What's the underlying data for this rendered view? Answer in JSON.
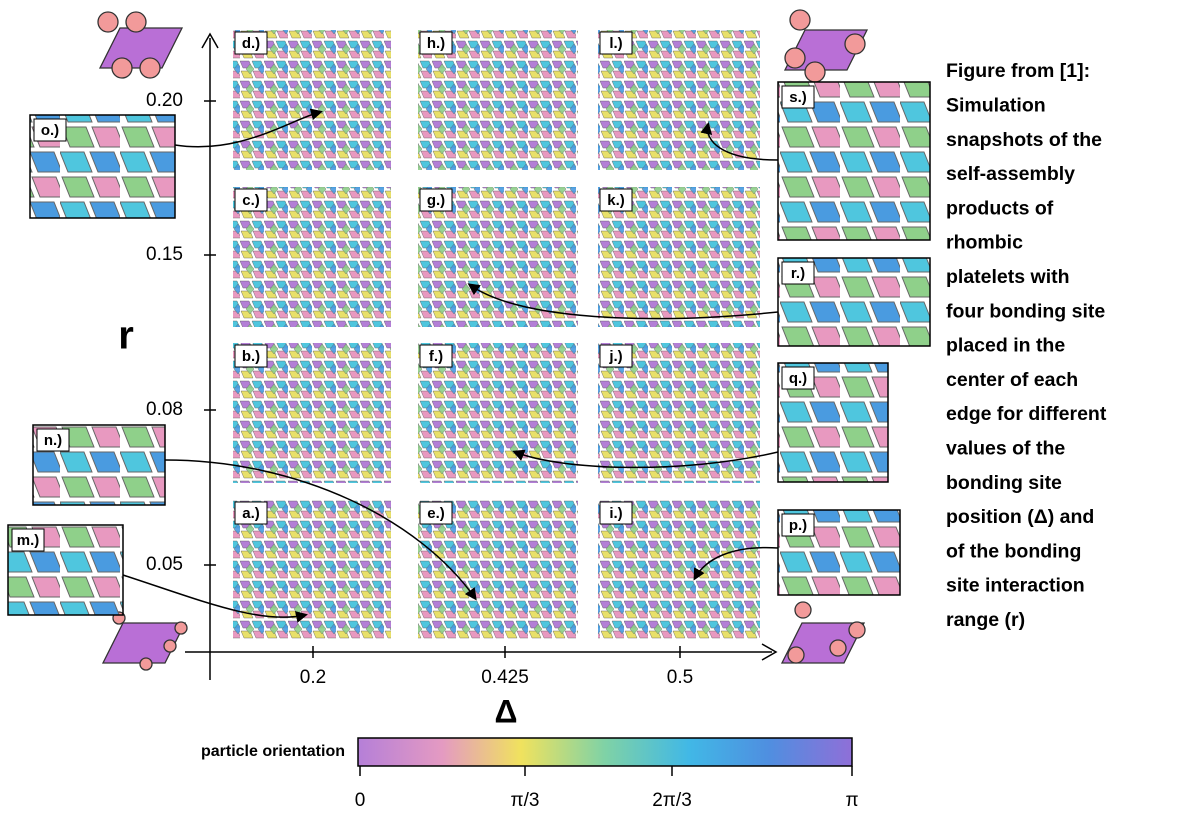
{
  "figure": {
    "caption_lines": [
      "Figure from [1]:",
      "Simulation",
      "snapshots of the",
      "self-assembly",
      "products of",
      "rhombic",
      "platelets with",
      "four bonding site",
      "placed in the",
      "center of each",
      "edge for different",
      "values of the",
      "bonding site",
      "position (Δ) and",
      "of the bonding",
      "site interaction",
      "range (r)"
    ],
    "y_axis": {
      "label": "r",
      "ticks": [
        "0.20",
        "0.15",
        "0.08",
        "0.05"
      ]
    },
    "x_axis": {
      "label": "Δ",
      "ticks": [
        "0.2",
        "0.425",
        "0.5"
      ]
    },
    "panels": [
      "d.)",
      "h.)",
      "l.)",
      "c.)",
      "g.)",
      "k.)",
      "b.)",
      "f.)",
      "j.)",
      "a.)",
      "e.)",
      "i.)"
    ],
    "insets": [
      "o.)",
      "s.)",
      "r.)",
      "q.)",
      "n.)",
      "m.)",
      "p.)"
    ],
    "colorbar": {
      "label": "particle orientation",
      "ticks": [
        "0",
        "π/3",
        "2π/3",
        "π"
      ]
    }
  }
}
